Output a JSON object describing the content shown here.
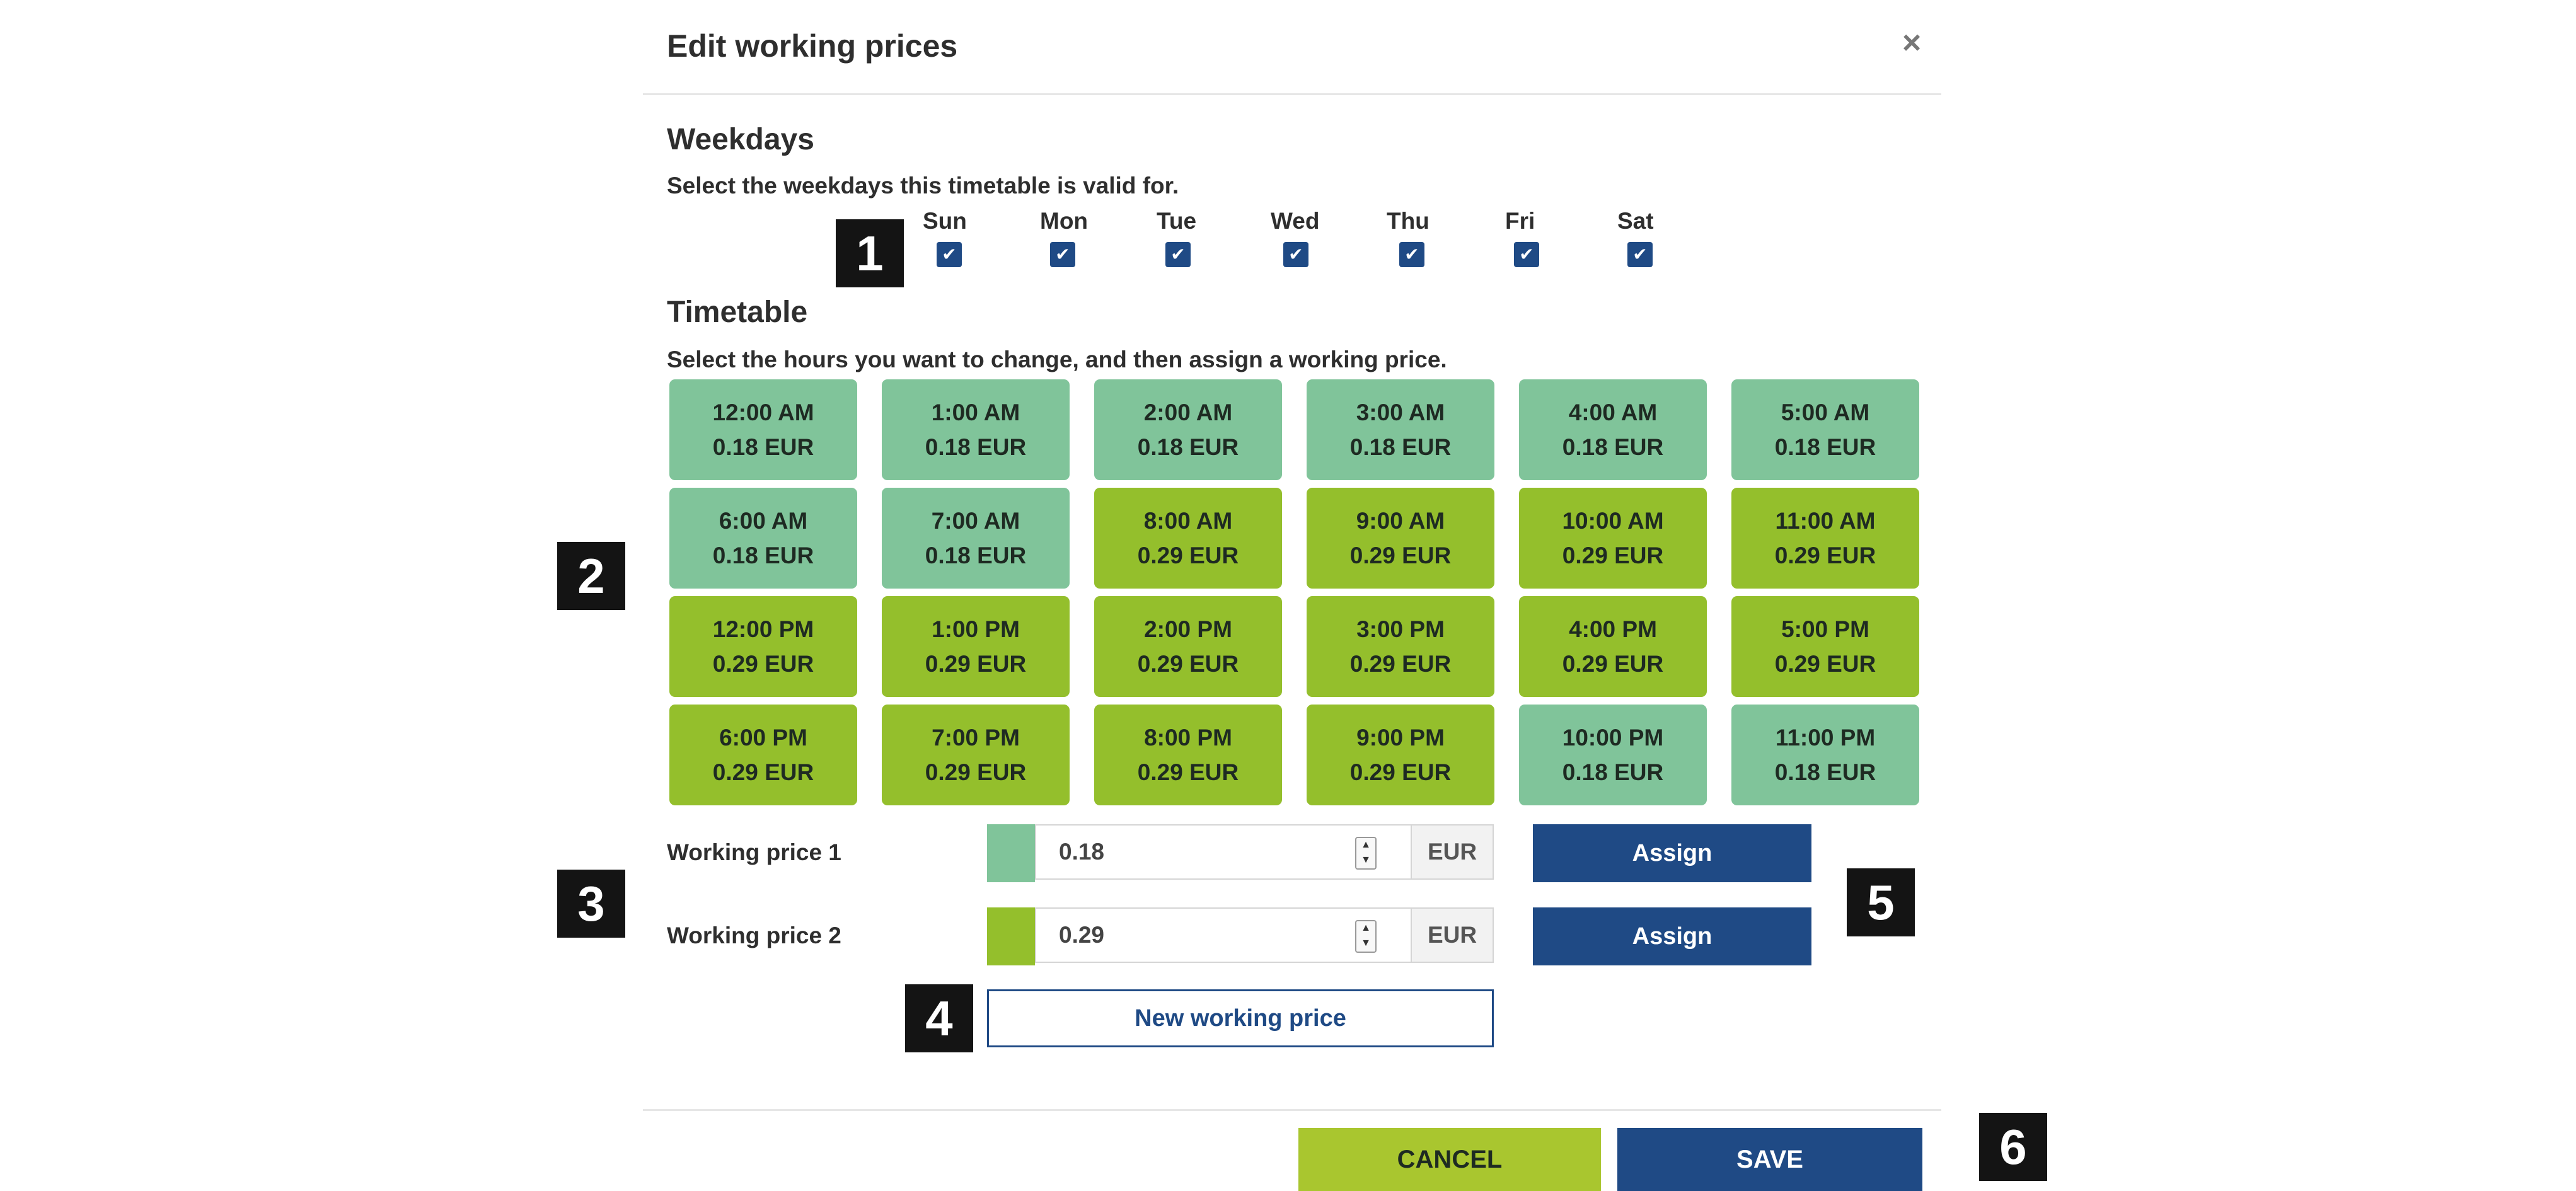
{
  "dialog": {
    "title": "Edit working prices",
    "close_glyph": "×"
  },
  "weekdays": {
    "title": "Weekdays",
    "description": "Select the weekdays this timetable is valid for.",
    "days": [
      {
        "label": "Sun",
        "checked": true
      },
      {
        "label": "Mon",
        "checked": true
      },
      {
        "label": "Tue",
        "checked": true
      },
      {
        "label": "Wed",
        "checked": true
      },
      {
        "label": "Thu",
        "checked": true
      },
      {
        "label": "Fri",
        "checked": true
      },
      {
        "label": "Sat",
        "checked": true
      }
    ]
  },
  "timetable": {
    "title": "Timetable",
    "description": "Select the hours you want to change, and then assign a working price.",
    "hours": [
      {
        "time": "12:00 AM",
        "price": "0.18 EUR",
        "tier": 1
      },
      {
        "time": "1:00 AM",
        "price": "0.18 EUR",
        "tier": 1
      },
      {
        "time": "2:00 AM",
        "price": "0.18 EUR",
        "tier": 1
      },
      {
        "time": "3:00 AM",
        "price": "0.18 EUR",
        "tier": 1
      },
      {
        "time": "4:00 AM",
        "price": "0.18 EUR",
        "tier": 1
      },
      {
        "time": "5:00 AM",
        "price": "0.18 EUR",
        "tier": 1
      },
      {
        "time": "6:00 AM",
        "price": "0.18 EUR",
        "tier": 1
      },
      {
        "time": "7:00 AM",
        "price": "0.18 EUR",
        "tier": 1
      },
      {
        "time": "8:00 AM",
        "price": "0.29 EUR",
        "tier": 2
      },
      {
        "time": "9:00 AM",
        "price": "0.29 EUR",
        "tier": 2
      },
      {
        "time": "10:00 AM",
        "price": "0.29 EUR",
        "tier": 2
      },
      {
        "time": "11:00 AM",
        "price": "0.29 EUR",
        "tier": 2
      },
      {
        "time": "12:00 PM",
        "price": "0.29 EUR",
        "tier": 2
      },
      {
        "time": "1:00 PM",
        "price": "0.29 EUR",
        "tier": 2
      },
      {
        "time": "2:00 PM",
        "price": "0.29 EUR",
        "tier": 2
      },
      {
        "time": "3:00 PM",
        "price": "0.29 EUR",
        "tier": 2
      },
      {
        "time": "4:00 PM",
        "price": "0.29 EUR",
        "tier": 2
      },
      {
        "time": "5:00 PM",
        "price": "0.29 EUR",
        "tier": 2
      },
      {
        "time": "6:00 PM",
        "price": "0.29 EUR",
        "tier": 2
      },
      {
        "time": "7:00 PM",
        "price": "0.29 EUR",
        "tier": 2
      },
      {
        "time": "8:00 PM",
        "price": "0.29 EUR",
        "tier": 2
      },
      {
        "time": "9:00 PM",
        "price": "0.29 EUR",
        "tier": 2
      },
      {
        "time": "10:00 PM",
        "price": "0.18 EUR",
        "tier": 1
      },
      {
        "time": "11:00 PM",
        "price": "0.18 EUR",
        "tier": 1
      }
    ]
  },
  "working_prices": [
    {
      "label": "Working price 1",
      "value": "0.18",
      "unit": "EUR",
      "color": "#80c49a",
      "assign_label": "Assign"
    },
    {
      "label": "Working price 2",
      "value": "0.29",
      "unit": "EUR",
      "color": "#94bf2c",
      "assign_label": "Assign"
    }
  ],
  "new_price_label": "New working price",
  "footer": {
    "cancel_label": "CANCEL",
    "save_label": "SAVE"
  },
  "colors": {
    "tier1": "#80c49a",
    "tier2": "#94bf2c",
    "accent": "#1f4a85",
    "cancel": "#a9c62f"
  },
  "markers": [
    "1",
    "2",
    "3",
    "4",
    "5",
    "6"
  ]
}
